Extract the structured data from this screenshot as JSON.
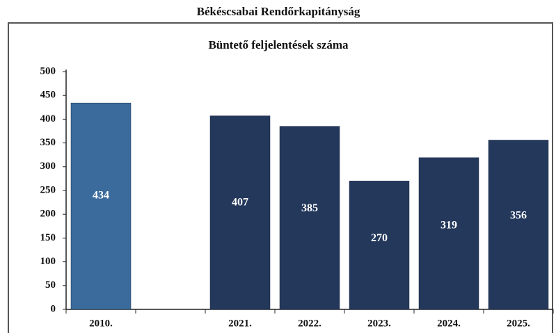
{
  "chart_data": {
    "type": "bar",
    "header": "Békéscsabai Rendőrkapitányság",
    "title": "Büntető feljelentések száma",
    "categories": [
      "2010.",
      null,
      "2021.",
      "2022.",
      "2023.",
      "2024.",
      "2025."
    ],
    "values": [
      434,
      null,
      407,
      385,
      270,
      319,
      356
    ],
    "colors": [
      "#3a6b9c",
      null,
      "#24385c",
      "#24385c",
      "#24385c",
      "#24385c",
      "#24385c"
    ],
    "ylim": [
      0,
      500
    ],
    "yticks": [
      0,
      50,
      100,
      150,
      200,
      250,
      300,
      350,
      400,
      450,
      500
    ],
    "grid": false
  }
}
